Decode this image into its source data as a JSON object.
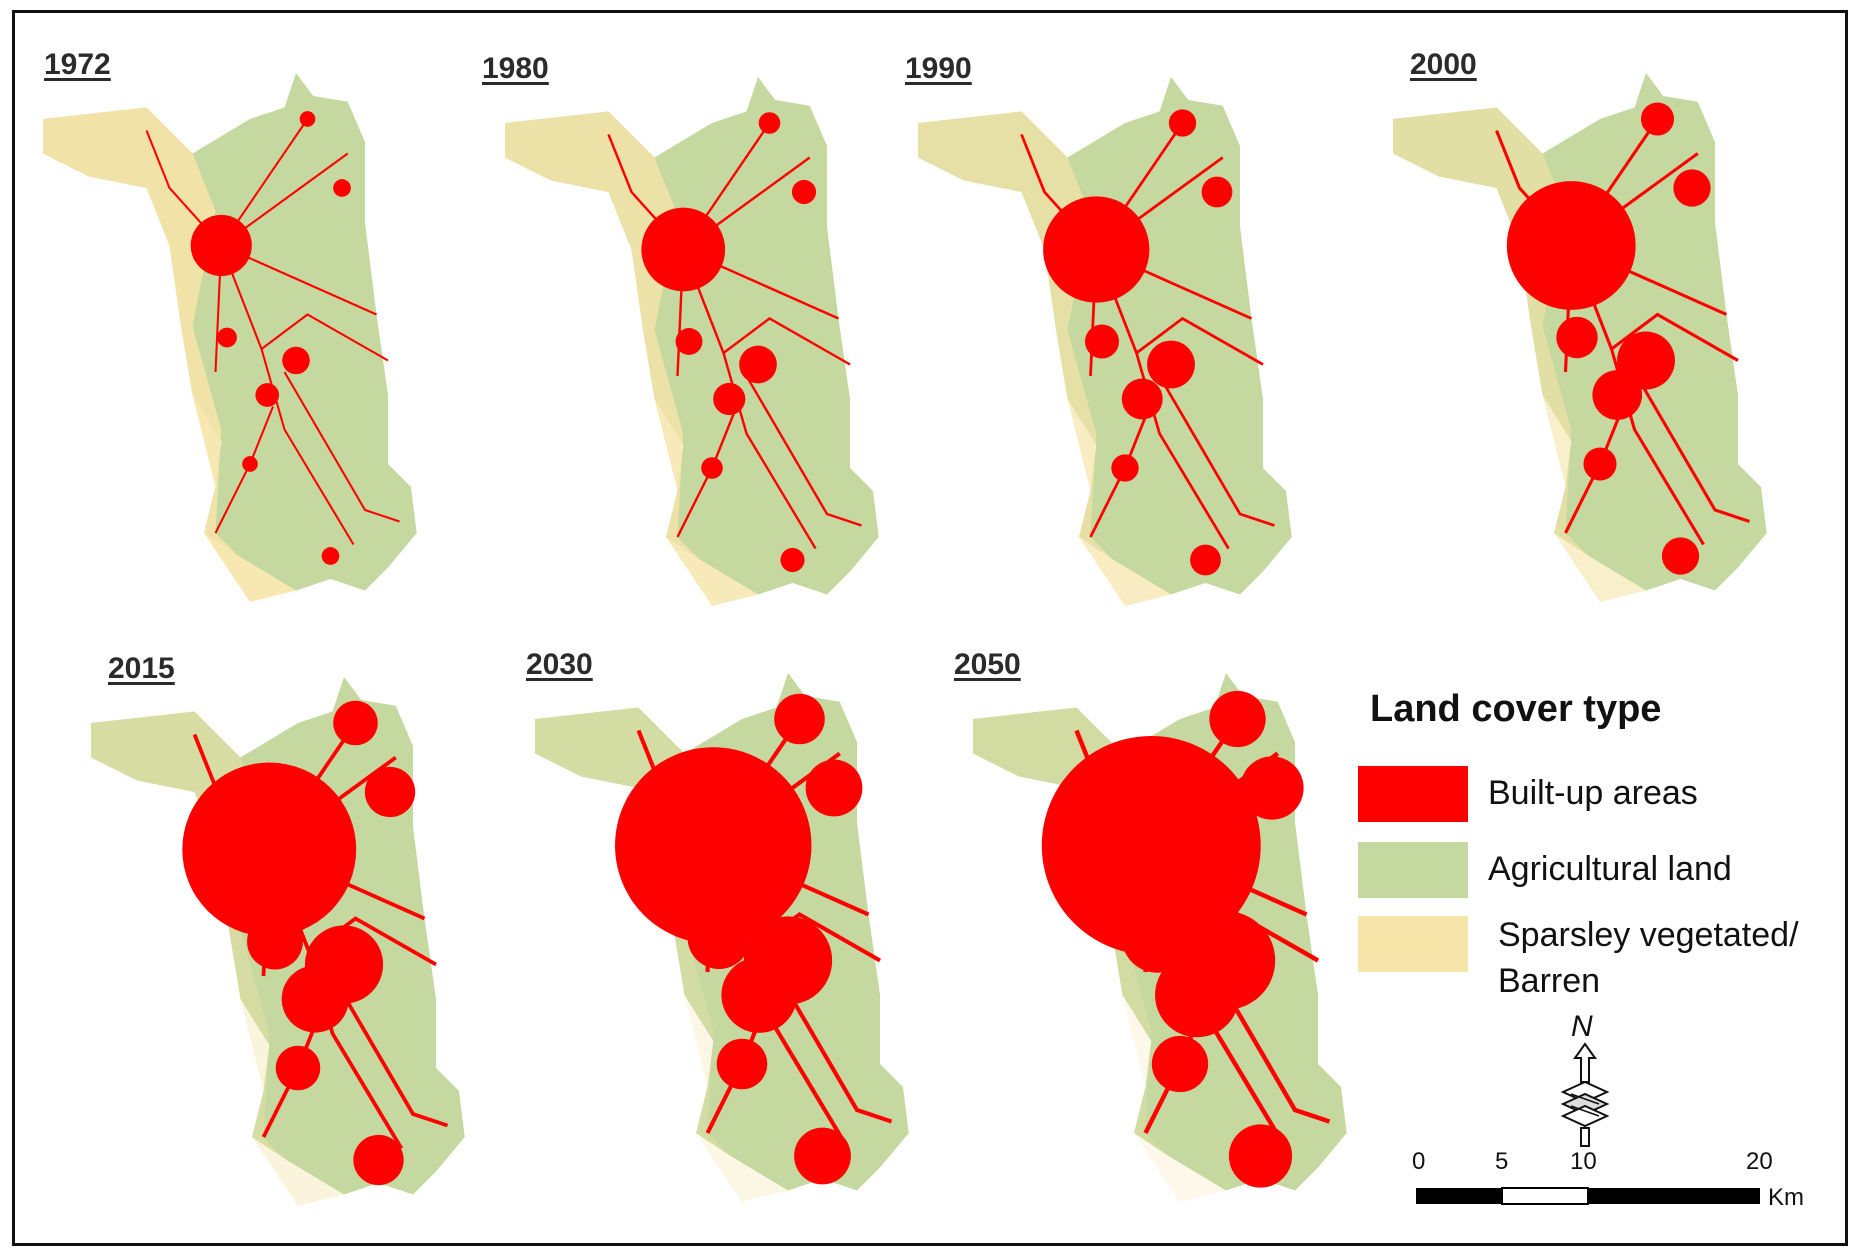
{
  "maps": [
    {
      "year": "1972",
      "built": 1
    },
    {
      "year": "1980",
      "built": 2
    },
    {
      "year": "1990",
      "built": 3
    },
    {
      "year": "2000",
      "built": 4
    },
    {
      "year": "2015",
      "built": 6
    },
    {
      "year": "2030",
      "built": 7
    },
    {
      "year": "2050",
      "built": 8
    }
  ],
  "legend": {
    "title": "Land cover type",
    "items": [
      {
        "label": "Built-up areas",
        "color": "#ff0000"
      },
      {
        "label": "Agricultural land",
        "color": "#c4d8a0"
      },
      {
        "label": "Sparsley vegetated/",
        "label2": "Barren",
        "color": "#f6e4a8"
      }
    ]
  },
  "north_arrow": {
    "label": "N"
  },
  "scale_bar": {
    "ticks": [
      "0",
      "5",
      "10",
      "20"
    ],
    "unit": "Km"
  }
}
